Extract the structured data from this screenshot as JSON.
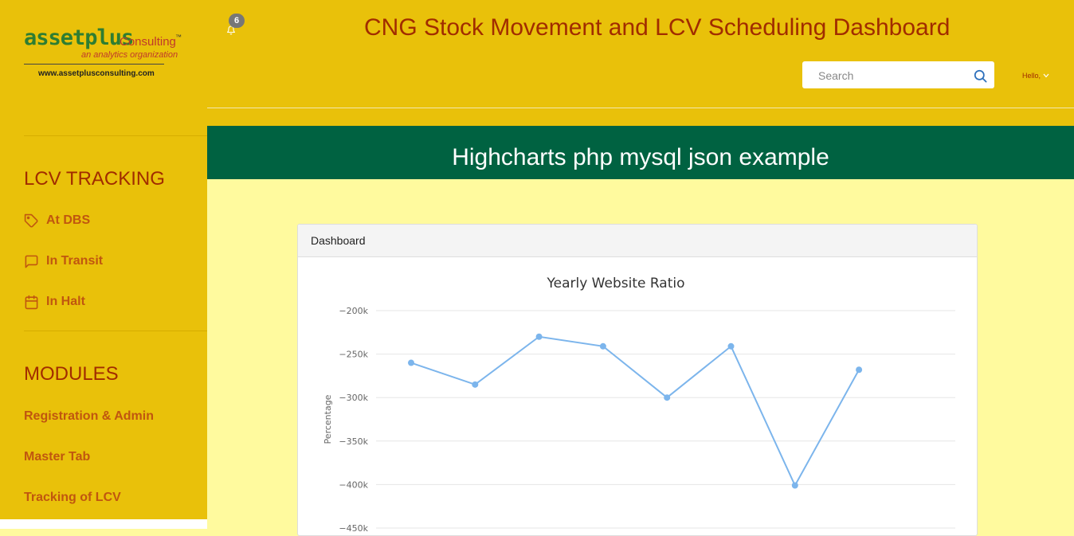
{
  "logo": {
    "brand": "assetplus",
    "consulting": "Consulting",
    "tm": "™",
    "tagline": "an analytics organization",
    "url": "www.assetplusconsulting.com"
  },
  "sidebar": {
    "sections": [
      {
        "title": "LCV TRACKING",
        "items": [
          {
            "label": "At DBS",
            "icon": "tag-icon"
          },
          {
            "label": "In Transit",
            "icon": "message-icon"
          },
          {
            "label": "In Halt",
            "icon": "calendar-icon"
          }
        ]
      },
      {
        "title": "MODULES",
        "items": [
          {
            "label": "Registration & Admin"
          },
          {
            "label": "Master Tab"
          },
          {
            "label": "Tracking of LCV"
          }
        ]
      }
    ]
  },
  "header": {
    "title": "CNG Stock Movement and LCV Scheduling Dashboard",
    "notification_count": "6",
    "search_placeholder": "Search",
    "greeting": "Hello,"
  },
  "banner": {
    "title": "Highcharts php mysql json example"
  },
  "card": {
    "title": "Dashboard"
  },
  "colors": {
    "sidebar_bg": "#e9c10a",
    "accent_text": "#a12c00",
    "nav_text": "#c0560f",
    "banner_bg": "#006241",
    "content_bg": "#fffa9e",
    "series": "#7cb5ec"
  },
  "chart_data": {
    "type": "line",
    "title": "Yearly Website Ratio",
    "ylabel": "Percentage",
    "ylim": [
      -450000,
      -200000
    ],
    "y_ticks": [
      -200000,
      -250000,
      -300000,
      -350000,
      -400000,
      -450000
    ],
    "y_tick_labels": [
      "−200k",
      "−250k",
      "−300k",
      "−350k",
      "−400k",
      "−450k"
    ],
    "grid": true,
    "series": [
      {
        "values": [
          -260000,
          -285000,
          -230000,
          -241000,
          -300000,
          -241000,
          -401000,
          -268000
        ]
      }
    ]
  }
}
